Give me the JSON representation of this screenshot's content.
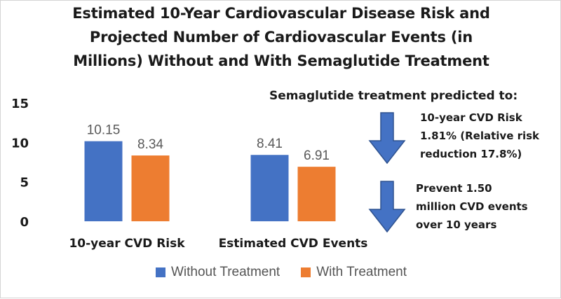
{
  "title_lines": [
    "Estimated 10-Year Cardiovascular Disease Risk and",
    "Projected Number of Cardiovascular Events (in",
    "Millions) Without and With Semaglutide Treatment"
  ],
  "annotation": {
    "header": "Semaglutide treatment predicted to:",
    "item1_lines": [
      "10-year CVD Risk",
      "1.81% (Relative risk",
      "reduction 17.8%)"
    ],
    "item2_lines": [
      "Prevent 1.50",
      "million CVD events",
      "over 10 years"
    ]
  },
  "colors": {
    "without": "#4472C4",
    "with": "#ED7D31",
    "arrow": "#4472C4",
    "arrow_stroke": "#2F528F",
    "axis_text": "#1a1a1a",
    "data_label": "#595959",
    "gridline": "#d9d9d9"
  },
  "chart_data": {
    "type": "bar",
    "categories": [
      "10-year CVD Risk",
      "Estimated CVD Events"
    ],
    "series": [
      {
        "name": "Without Treatment",
        "values": [
          10.15,
          8.41
        ],
        "labels": [
          "10.15",
          "8.41"
        ]
      },
      {
        "name": "With Treatment",
        "values": [
          8.34,
          6.91
        ],
        "labels": [
          "8.34",
          "6.91"
        ]
      }
    ],
    "ylim": [
      0,
      15
    ],
    "yticks": [
      0,
      5,
      10,
      15
    ],
    "grid": false,
    "legend_position": "bottom",
    "xlabel": "",
    "ylabel": ""
  }
}
